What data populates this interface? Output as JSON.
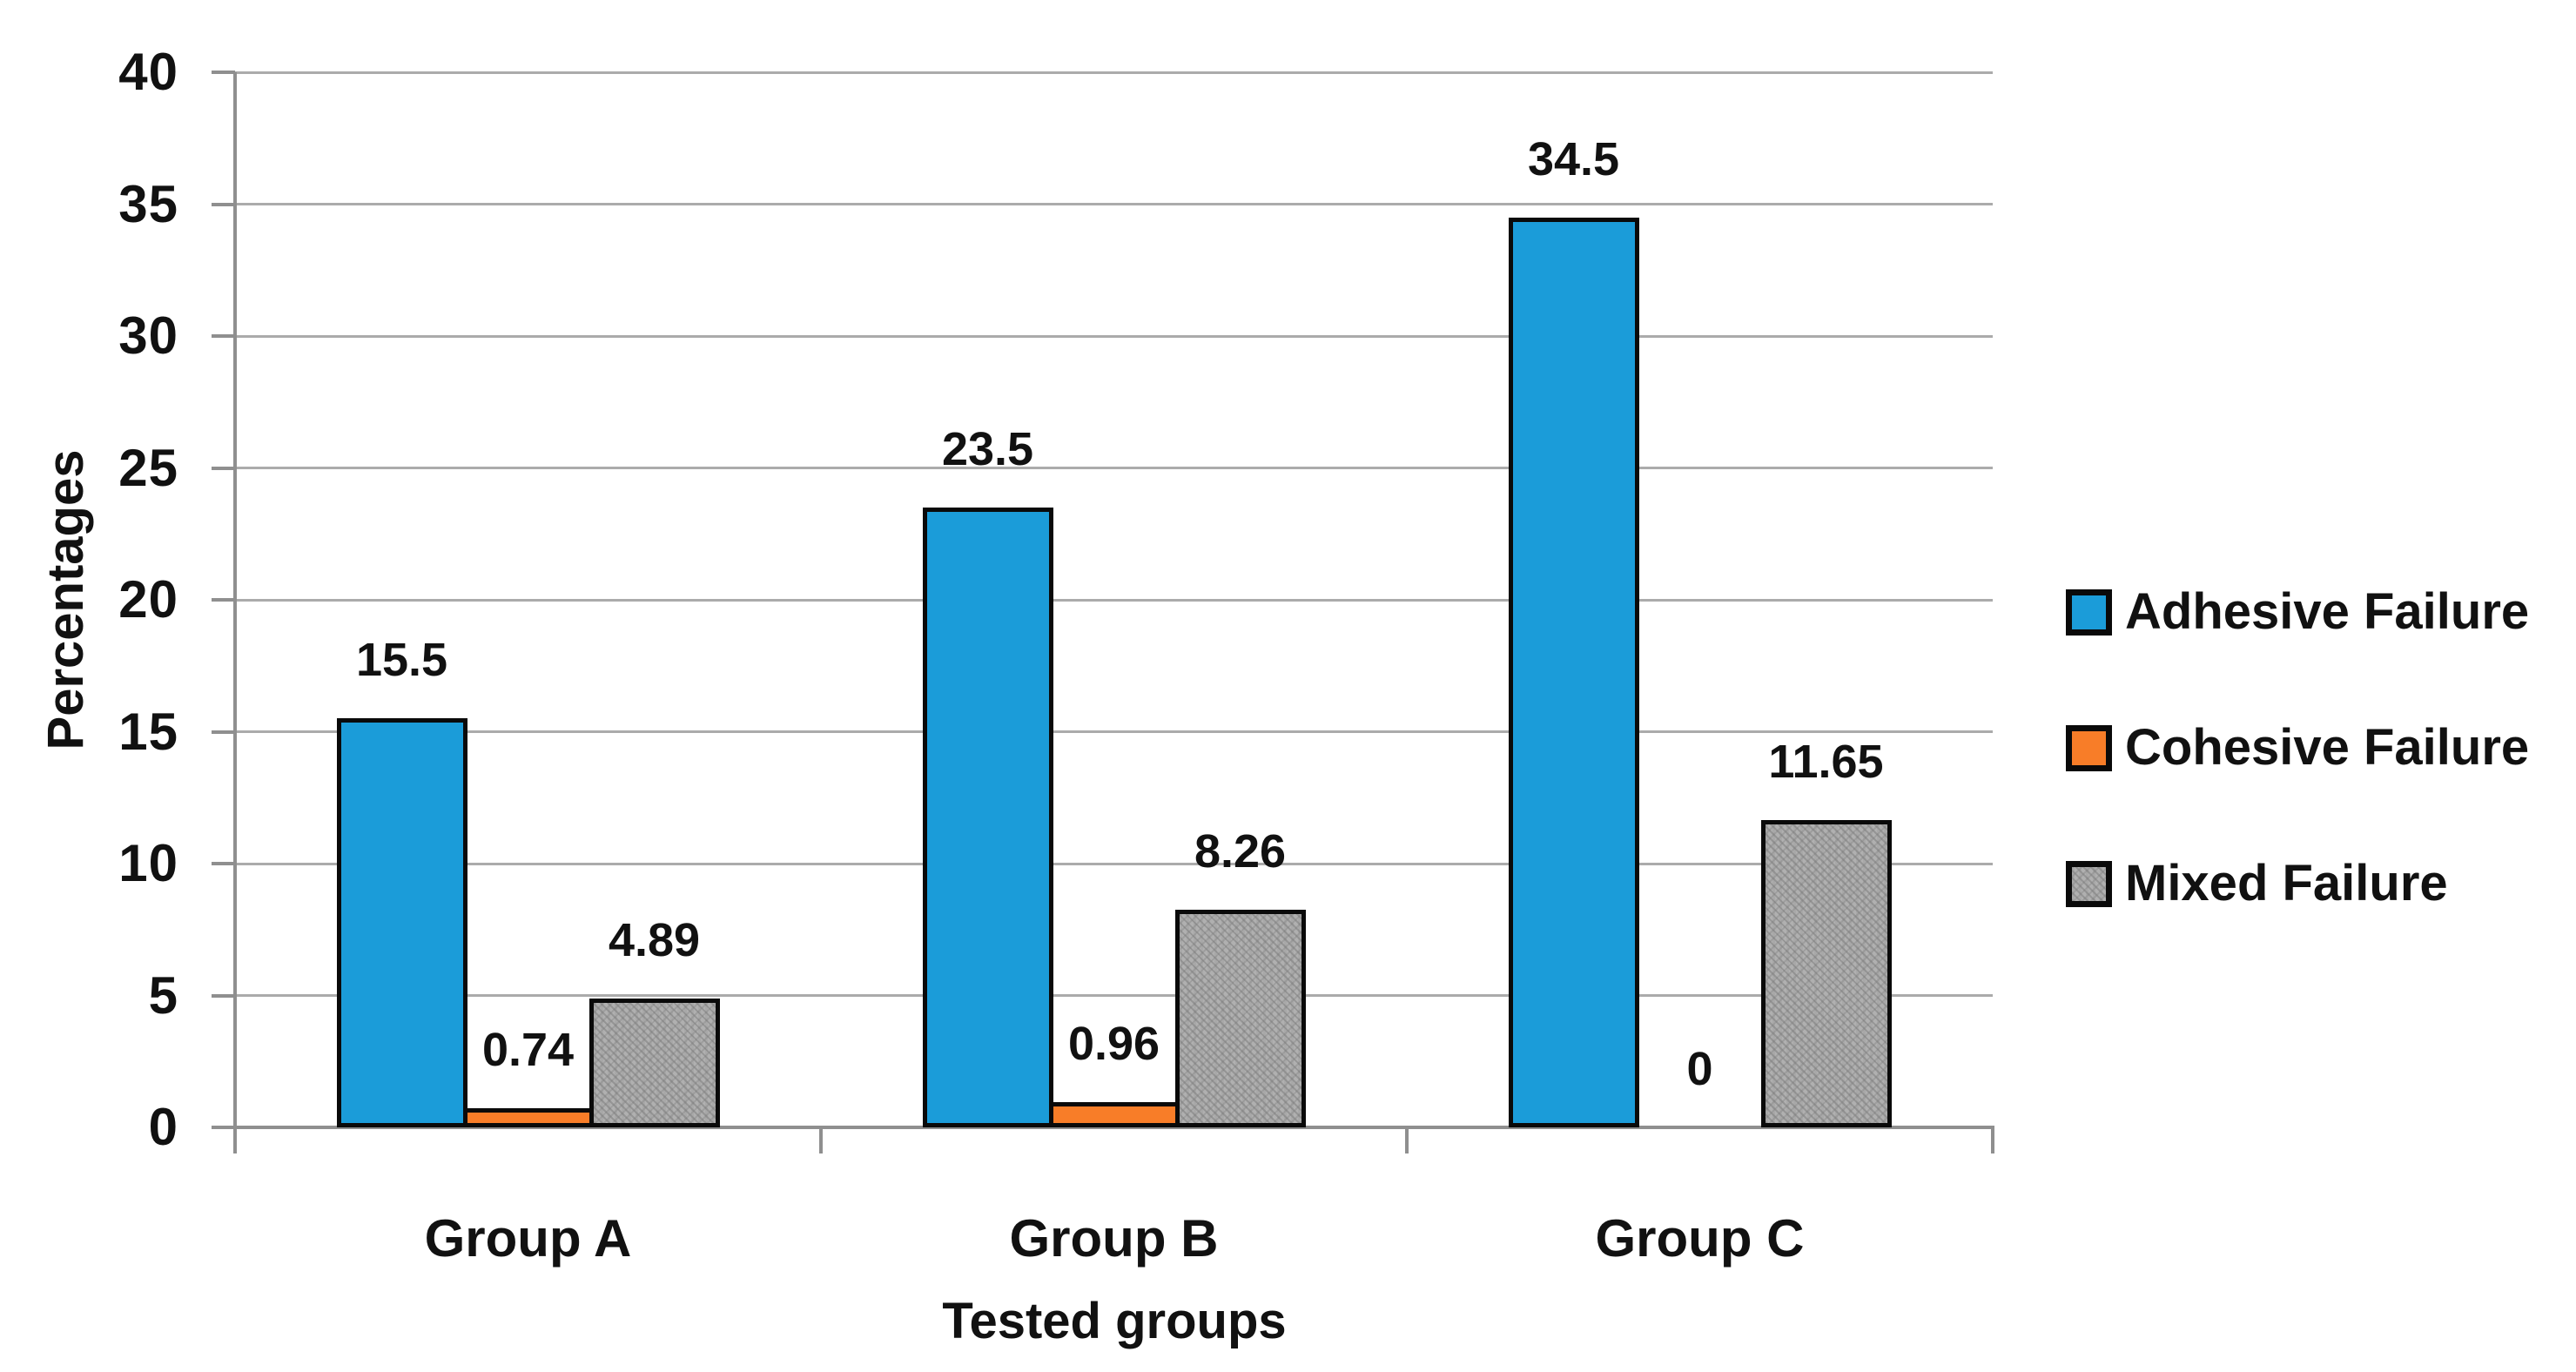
{
  "chart_data": {
    "type": "bar",
    "title": "",
    "xlabel": "Tested groups",
    "ylabel": "Percentages",
    "categories": [
      "Group A",
      "Group B",
      "Group C"
    ],
    "series": [
      {
        "name": "Adhesive Failure",
        "color": "#1B9CD9",
        "fill": "solid",
        "values": [
          15.5,
          23.5,
          34.5
        ],
        "data_labels": [
          "15.5",
          "23.5",
          "34.5"
        ]
      },
      {
        "name": "Cohesive Failure",
        "color": "#F87D28",
        "fill": "solid",
        "values": [
          0.74,
          0.96,
          0
        ],
        "data_labels": [
          "0.74",
          "0.96",
          "0"
        ]
      },
      {
        "name": "Mixed Failure",
        "color": "#B0B0B0",
        "fill": "speckled",
        "values": [
          4.89,
          8.26,
          11.65
        ],
        "data_labels": [
          "4.89",
          "8.26",
          "11.65"
        ]
      }
    ],
    "ylim": [
      0,
      40
    ],
    "ytick_step": 5,
    "ytick_labels": [
      "0",
      "5",
      "10",
      "15",
      "20",
      "25",
      "30",
      "35",
      "40"
    ],
    "grid": true,
    "legend_position": "right",
    "colors": {
      "gridline": "#ABABAB",
      "axis": "#8F8F8F",
      "bar_border": "#0A0A0A",
      "text": "#111111",
      "background": "#FFFFFF"
    }
  }
}
